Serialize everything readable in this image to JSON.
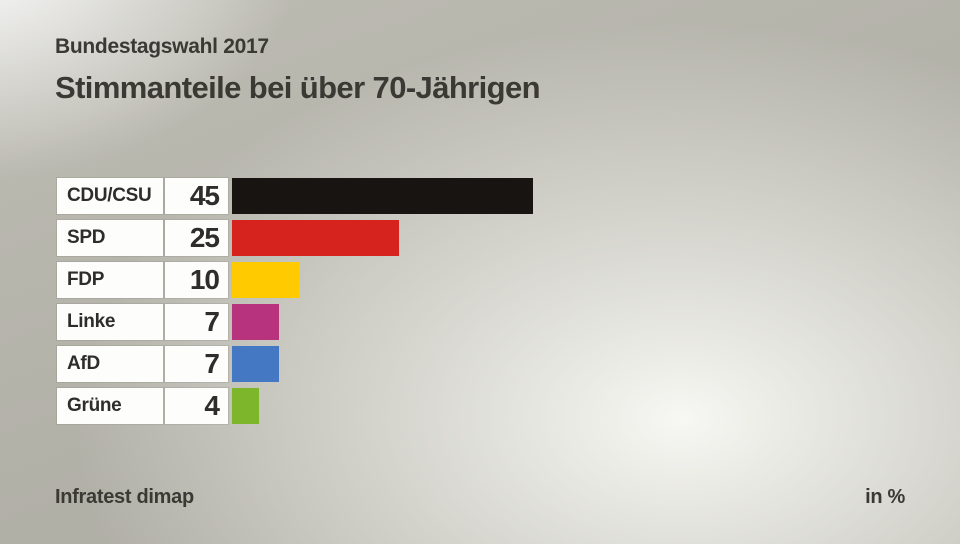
{
  "header": {
    "kicker": "Bundestagswahl 2017",
    "title": "Stimmanteile bei über 70-Jährigen"
  },
  "footer": {
    "source": "Infratest dimap",
    "unit": "in %"
  },
  "chart_data": {
    "type": "bar",
    "orientation": "horizontal",
    "title": "Stimmanteile bei über 70-Jährigen",
    "subtitle": "Bundestagswahl 2017",
    "categories": [
      "CDU/CSU",
      "SPD",
      "FDP",
      "Linke",
      "AfD",
      "Grüne"
    ],
    "values": [
      45,
      25,
      10,
      7,
      7,
      4
    ],
    "colors": [
      "#171412",
      "#d7231e",
      "#ffcb00",
      "#b8337e",
      "#4578c2",
      "#7db52b"
    ],
    "xlim": [
      0,
      45
    ],
    "unit": "in %",
    "source": "Infratest dimap",
    "legend_position": "none",
    "grid": false
  },
  "style_colors": {
    "background_base": "#b1b0a7",
    "cell_background": "#fdfdfb",
    "text": "#3a3934"
  }
}
